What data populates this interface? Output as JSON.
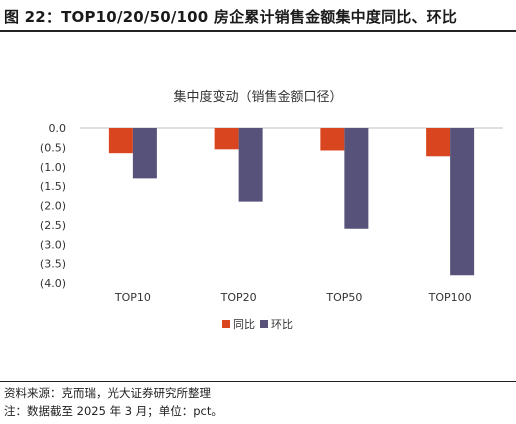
{
  "figure": {
    "title": "图 22：TOP10/20/50/100 房企累计销售金额集中度同比、环比",
    "source": "资料来源：克而瑞，光大证券研究所整理",
    "note": "注：数据截至 2025 年 3 月；单位：pct。"
  },
  "chart_data": {
    "type": "bar",
    "title": "集中度变动（销售金额口径）",
    "categories": [
      "TOP10",
      "TOP20",
      "TOP50",
      "TOP100"
    ],
    "series": [
      {
        "name": "同比",
        "color": "#d9451f",
        "values": [
          -0.65,
          -0.55,
          -0.58,
          -0.73
        ]
      },
      {
        "name": "环比",
        "color": "#56527a",
        "values": [
          -1.3,
          -1.9,
          -2.6,
          -3.8
        ]
      }
    ],
    "ylim": [
      -4.0,
      0.0
    ],
    "yticks": [
      0.0,
      -0.5,
      -1.0,
      -1.5,
      -2.0,
      -2.5,
      -3.0,
      -3.5,
      -4.0
    ],
    "ytick_labels": [
      "0.0",
      "(0.5)",
      "(1.0)",
      "(1.5)",
      "(2.0)",
      "(2.5)",
      "(3.0)",
      "(3.5)",
      "(4.0)"
    ],
    "grid": false,
    "legend_position": "bottom"
  }
}
